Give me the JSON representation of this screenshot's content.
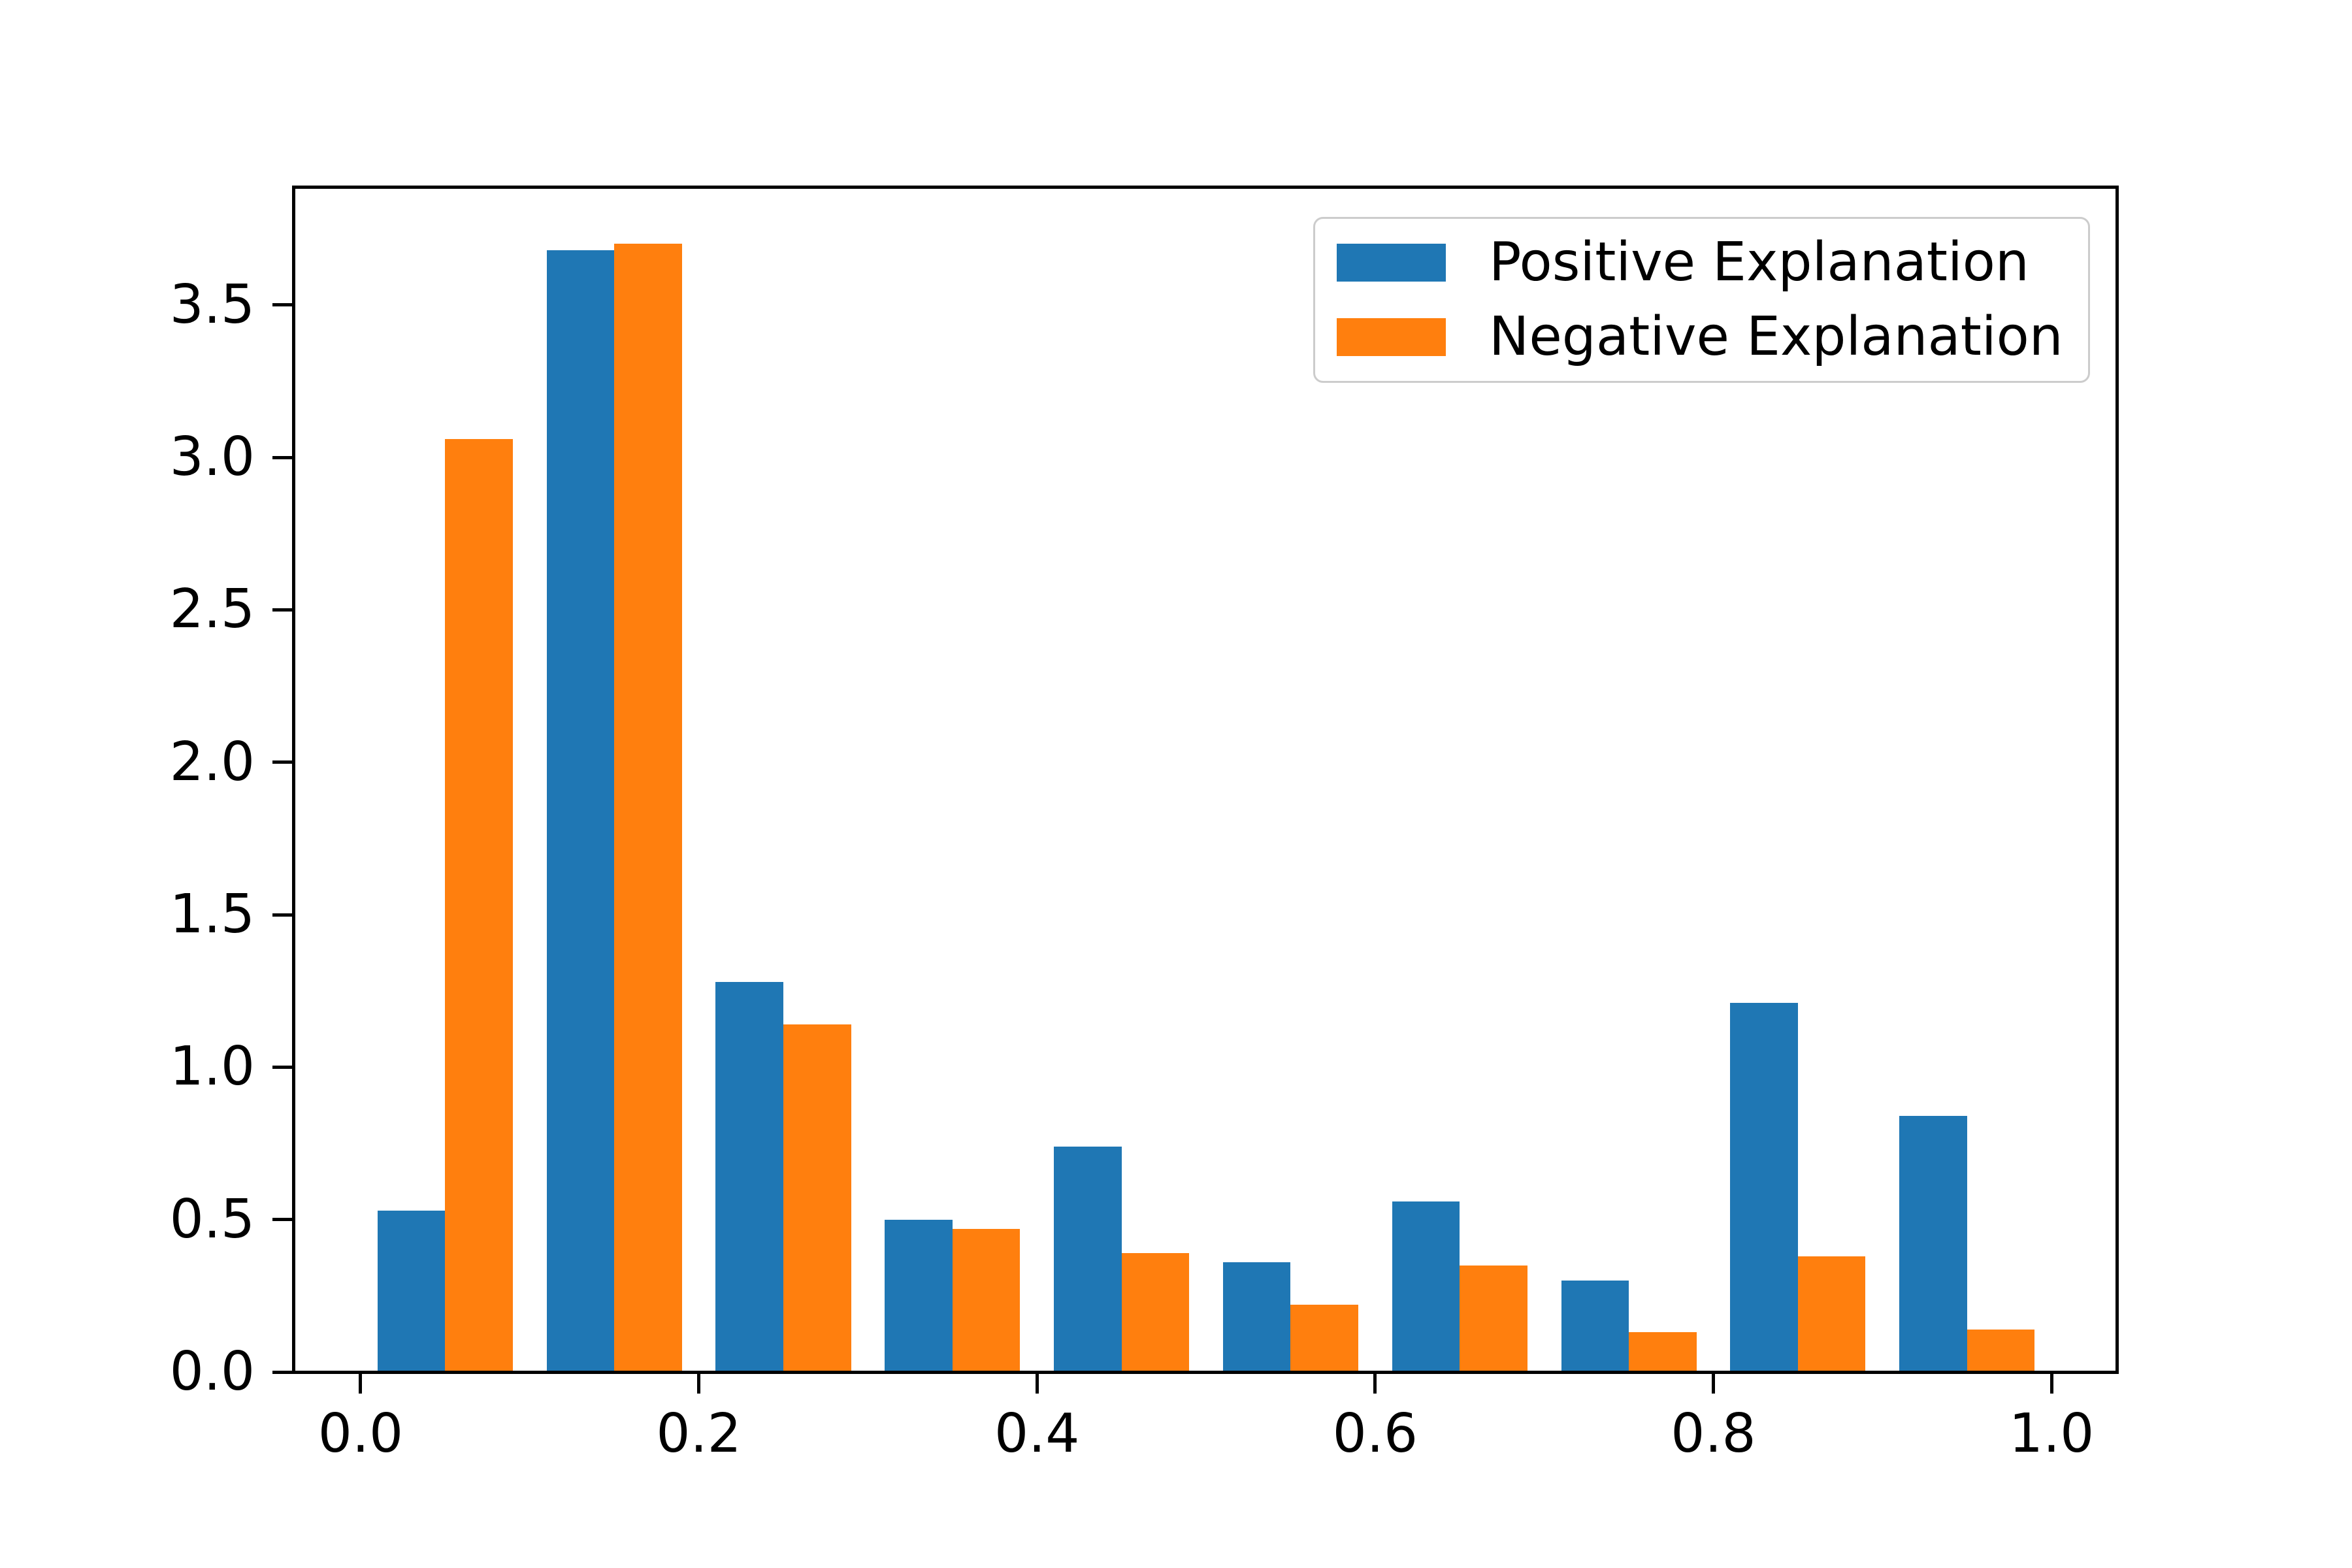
{
  "chart_data": {
    "type": "bar",
    "subtype": "grouped-histogram-density",
    "title": "",
    "xlabel": "",
    "ylabel": "",
    "bin_left_edges": [
      0.0,
      0.1,
      0.2,
      0.3,
      0.4,
      0.5,
      0.6,
      0.7,
      0.8,
      0.9
    ],
    "bin_width": 0.1,
    "bar_rel_offsets": [
      0.01,
      0.05
    ],
    "bar_rel_width": 0.04,
    "series": [
      {
        "name": "Positive Explanation",
        "color": "#1f77b4",
        "values": [
          0.53,
          3.68,
          1.28,
          0.5,
          0.74,
          0.36,
          0.56,
          0.3,
          1.21,
          0.84
        ]
      },
      {
        "name": "Negative Explanation",
        "color": "#ff7f0e",
        "values": [
          3.06,
          3.7,
          1.14,
          0.47,
          0.39,
          0.22,
          0.35,
          0.13,
          0.38,
          0.14
        ]
      }
    ],
    "x_tick_values": [
      0.0,
      0.2,
      0.4,
      0.6,
      0.8,
      1.0
    ],
    "x_tick_labels": [
      "0.0",
      "0.2",
      "0.4",
      "0.6",
      "0.8",
      "1.0"
    ],
    "y_tick_values": [
      0.0,
      0.5,
      1.0,
      1.5,
      2.0,
      2.5,
      3.0,
      3.5
    ],
    "y_tick_labels": [
      "0.0",
      "0.5",
      "1.0",
      "1.5",
      "2.0",
      "2.5",
      "3.0",
      "3.5"
    ],
    "xlim": [
      -0.0394,
      1.0386
    ],
    "ylim": [
      0,
      3.885
    ],
    "grid": false,
    "legend_position": "upper right",
    "axis_color": "#000000",
    "background_color": "#ffffff"
  }
}
